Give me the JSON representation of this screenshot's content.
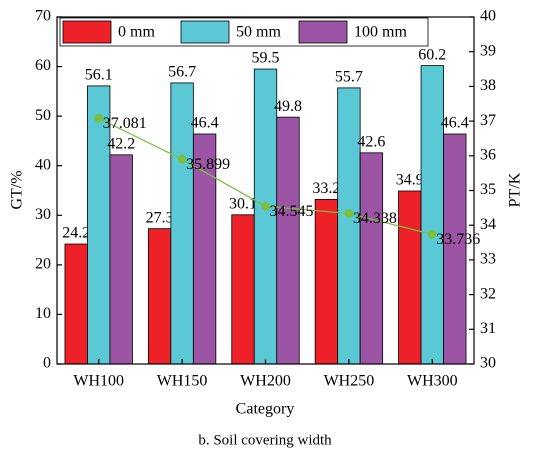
{
  "chart_data": {
    "type": "bar",
    "categories": [
      "WH100",
      "WH150",
      "WH200",
      "WH250",
      "WH300"
    ],
    "series": [
      {
        "name": "0 mm",
        "color": "#ee2128",
        "values": [
          24.2,
          27.3,
          30.1,
          33.2,
          34.9
        ]
      },
      {
        "name": "50 mm",
        "color": "#5bc8d6",
        "values": [
          56.1,
          56.7,
          59.5,
          55.7,
          60.2
        ]
      },
      {
        "name": "100 mm",
        "color": "#9b55a4",
        "values": [
          42.2,
          46.4,
          49.8,
          42.6,
          46.4
        ]
      },
      {
        "type": "line",
        "axis": "y2",
        "color": "#7ac143",
        "values": [
          37.081,
          35.899,
          34.545,
          34.338,
          33.736
        ]
      }
    ],
    "ylim": [
      0,
      70
    ],
    "yticks": [
      0,
      10,
      20,
      30,
      40,
      50,
      60,
      70
    ],
    "y2lim": [
      30,
      40
    ],
    "y2ticks": [
      30,
      31,
      32,
      33,
      34,
      35,
      36,
      37,
      38,
      39,
      40
    ],
    "ylabel": "GT/%",
    "y2label": "PT/K",
    "xlabel": "Category",
    "caption": "b. Soil covering width",
    "legend": "top",
    "grid": false
  }
}
